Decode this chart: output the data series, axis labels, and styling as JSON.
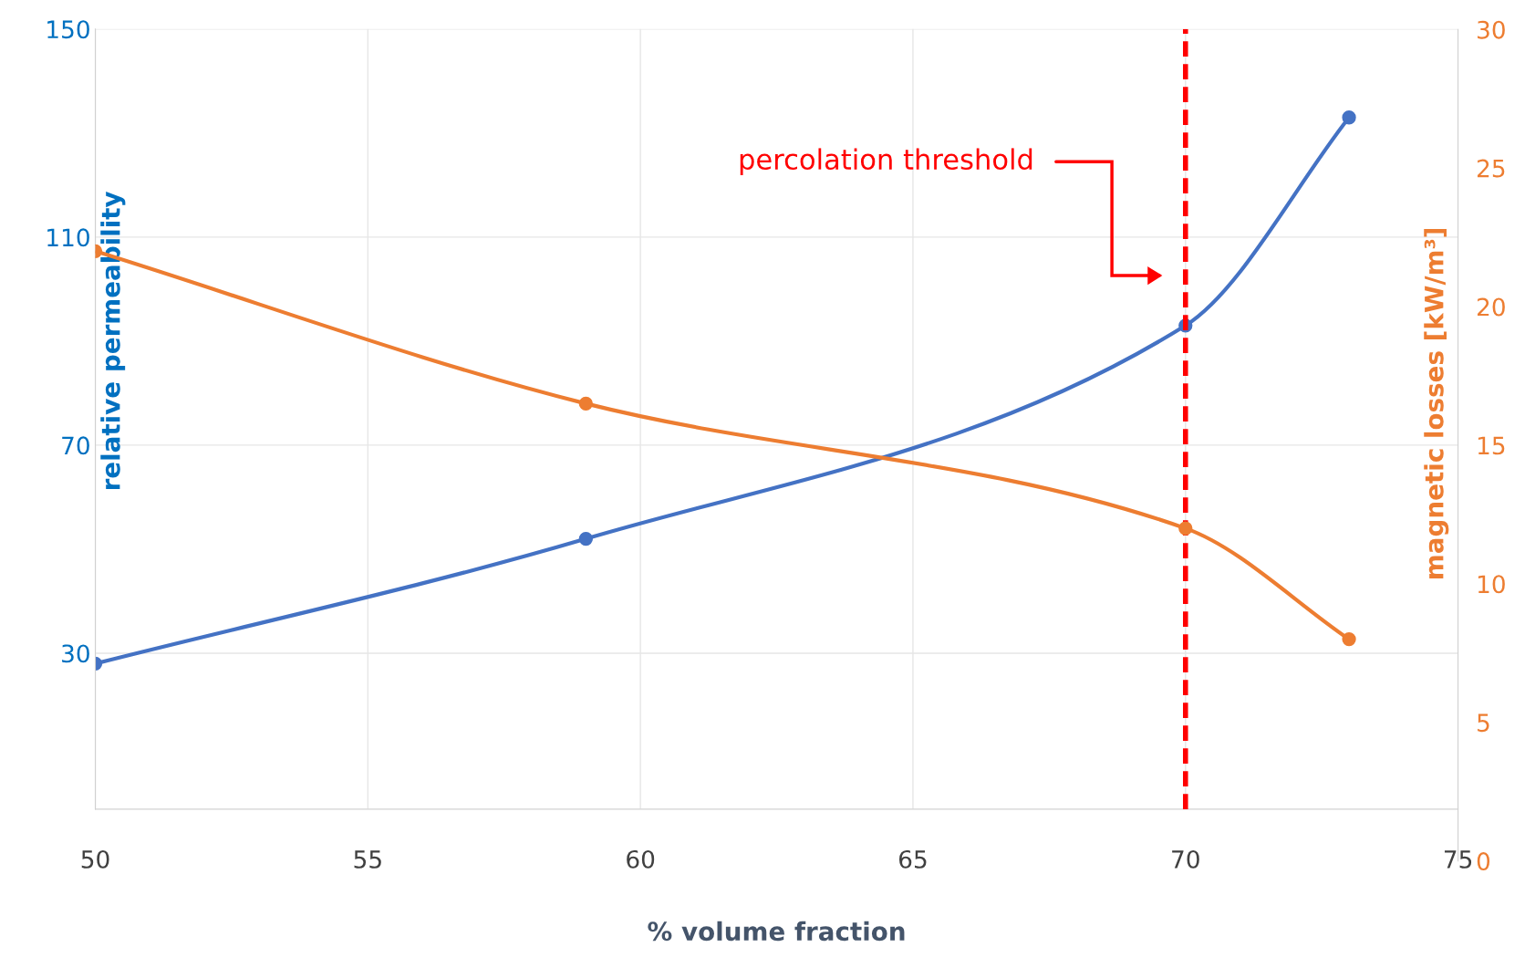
{
  "chart_data": {
    "type": "line",
    "xlabel": "% volume fraction",
    "ylabel": "relative permeability",
    "y2label": "magnetic losses [kW/m³]",
    "x": [
      50,
      59,
      70,
      73
    ],
    "series": [
      {
        "color": "#4472c4",
        "values": [
          28,
          52,
          93,
          133
        ]
      },
      {
        "color": "#ed7d31",
        "values": [
          22,
          16.5,
          12,
          8
        ],
        "axis": "y2"
      }
    ],
    "xlim": [
      50,
      75
    ],
    "xticks": [
      50,
      55,
      60,
      65,
      70,
      75
    ],
    "ylim": [
      0,
      150
    ],
    "yticks": [
      {
        "value": 0,
        "label": null
      },
      30,
      70,
      110,
      150
    ],
    "y2lim": [
      0,
      30
    ],
    "y2ticks": [
      0,
      5,
      10,
      15,
      20,
      25,
      30
    ],
    "ref_lines": [
      {
        "axis": "x",
        "value": 70,
        "color": "#ff0000",
        "line_style": "dashed"
      }
    ],
    "annotations": [
      "percolation threshold"
    ],
    "grid": true,
    "marker": "circle",
    "line_style": "solid",
    "legend": false
  }
}
